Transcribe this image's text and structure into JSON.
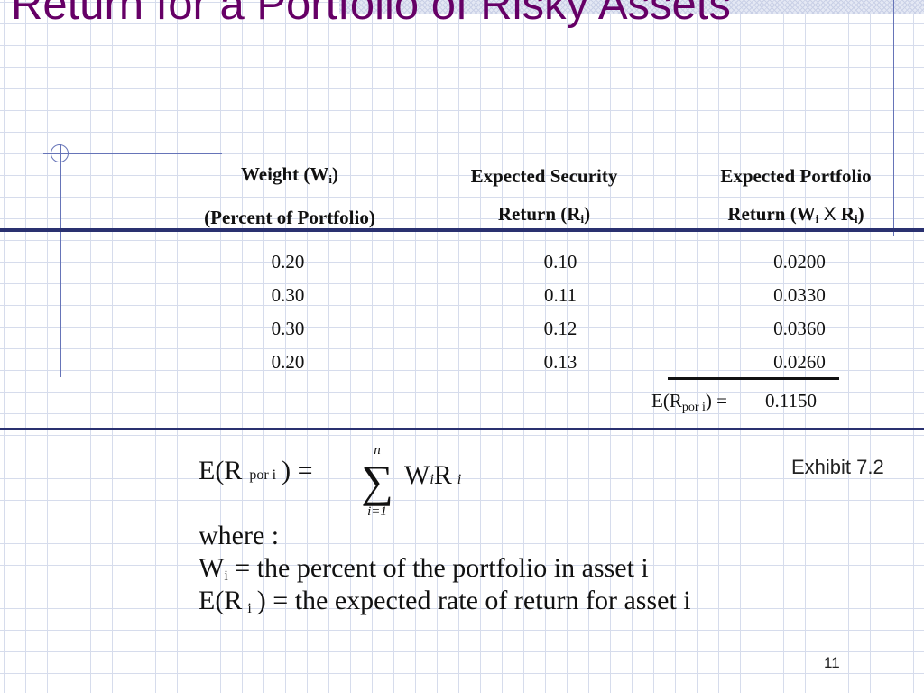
{
  "title": "Return for a Portfolio of Risky Assets",
  "table": {
    "headers": [
      {
        "line1": "Weight (W",
        "sub1": "i",
        "line1_end": ")",
        "line2": "(Percent of Portfolio)"
      },
      {
        "line1": "Expected Security",
        "line2": "Return (R",
        "sub2": "i",
        "line2_end": ")"
      },
      {
        "line1": "Expected Portfolio",
        "line2": "Return (W",
        "sub2a": "i",
        "mult": "X",
        "line2_mid": " R",
        "sub2b": "i",
        "line2_end": ")"
      }
    ],
    "weights": [
      "0.20",
      "0.30",
      "0.30",
      "0.20"
    ],
    "returns": [
      "0.10",
      "0.11",
      "0.12",
      "0.13"
    ],
    "products": [
      "0.0200",
      "0.0330",
      "0.0360",
      "0.0260"
    ],
    "total_label_prefix": "E(R",
    "total_label_sub": "por i",
    "total_label_suffix": ") =",
    "total_value": "0.1150"
  },
  "formula": {
    "lhs": "E(R",
    "lhs_sub": "por i",
    "lhs_end": ") =",
    "sigma_top": "n",
    "sigma_bottom": "i=1",
    "rhs_w": "W",
    "rhs_w_sub": "i",
    "rhs_r": "R",
    "rhs_r_sub": "i",
    "where": "where :",
    "def1_var": "W",
    "def1_sub": "i",
    "def1_text": " = the percent of the portfolio  in asset i",
    "def2_var": "E(R",
    "def2_sub": "i",
    "def2_text": ") = the expected rate of return  for asset i"
  },
  "exhibit": "Exhibit 7.2",
  "page_number": "11",
  "colors": {
    "title": "#660066",
    "rule": "#2a3170",
    "grid": "#d6dcec",
    "accent": "#6674b8"
  }
}
